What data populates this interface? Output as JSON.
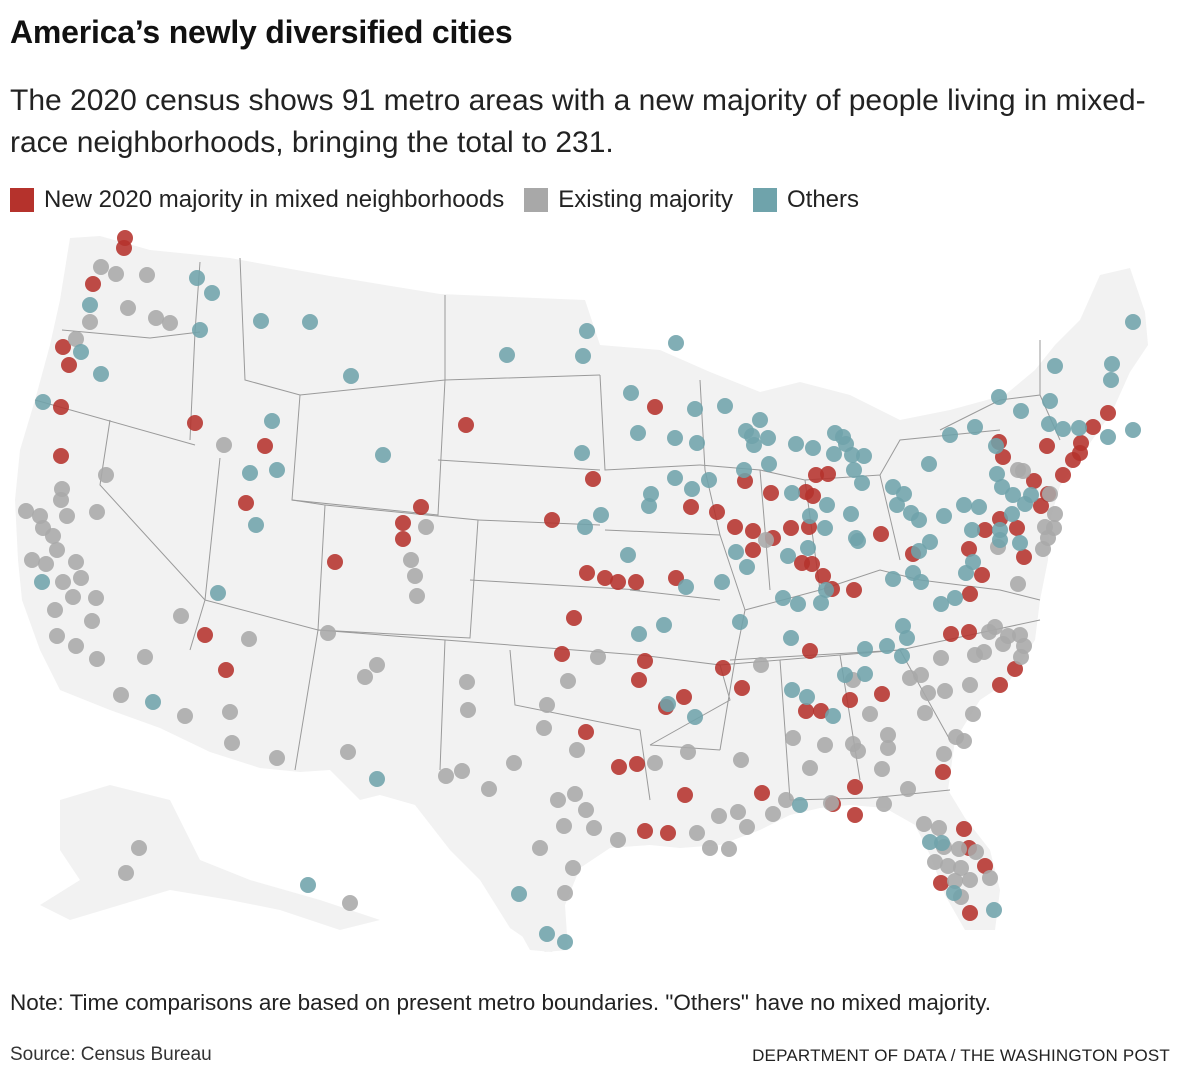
{
  "title": "America’s newly diversified cities",
  "subtitle": "The 2020 census shows 91 metro areas with a new majority of people living in mixed-race neighborhoods, bringing the total to 231.",
  "legend": [
    {
      "key": "new",
      "label": "New 2020 majority in mixed neighborhoods",
      "color": "#b5322c"
    },
    {
      "key": "existing",
      "label": "Existing majority",
      "color": "#a8a8a8"
    },
    {
      "key": "others",
      "label": "Others",
      "color": "#6fa3ab"
    }
  ],
  "note": "Note: Time comparisons are based on present metro boundaries. \"Others\" have no mixed majority.",
  "source": "Source: Census Bureau",
  "credit": "DEPARTMENT OF DATA / THE WASHINGTON POST",
  "map": {
    "land_color": "#f2f2f2",
    "border_color": "#9a9a9a"
  }
}
